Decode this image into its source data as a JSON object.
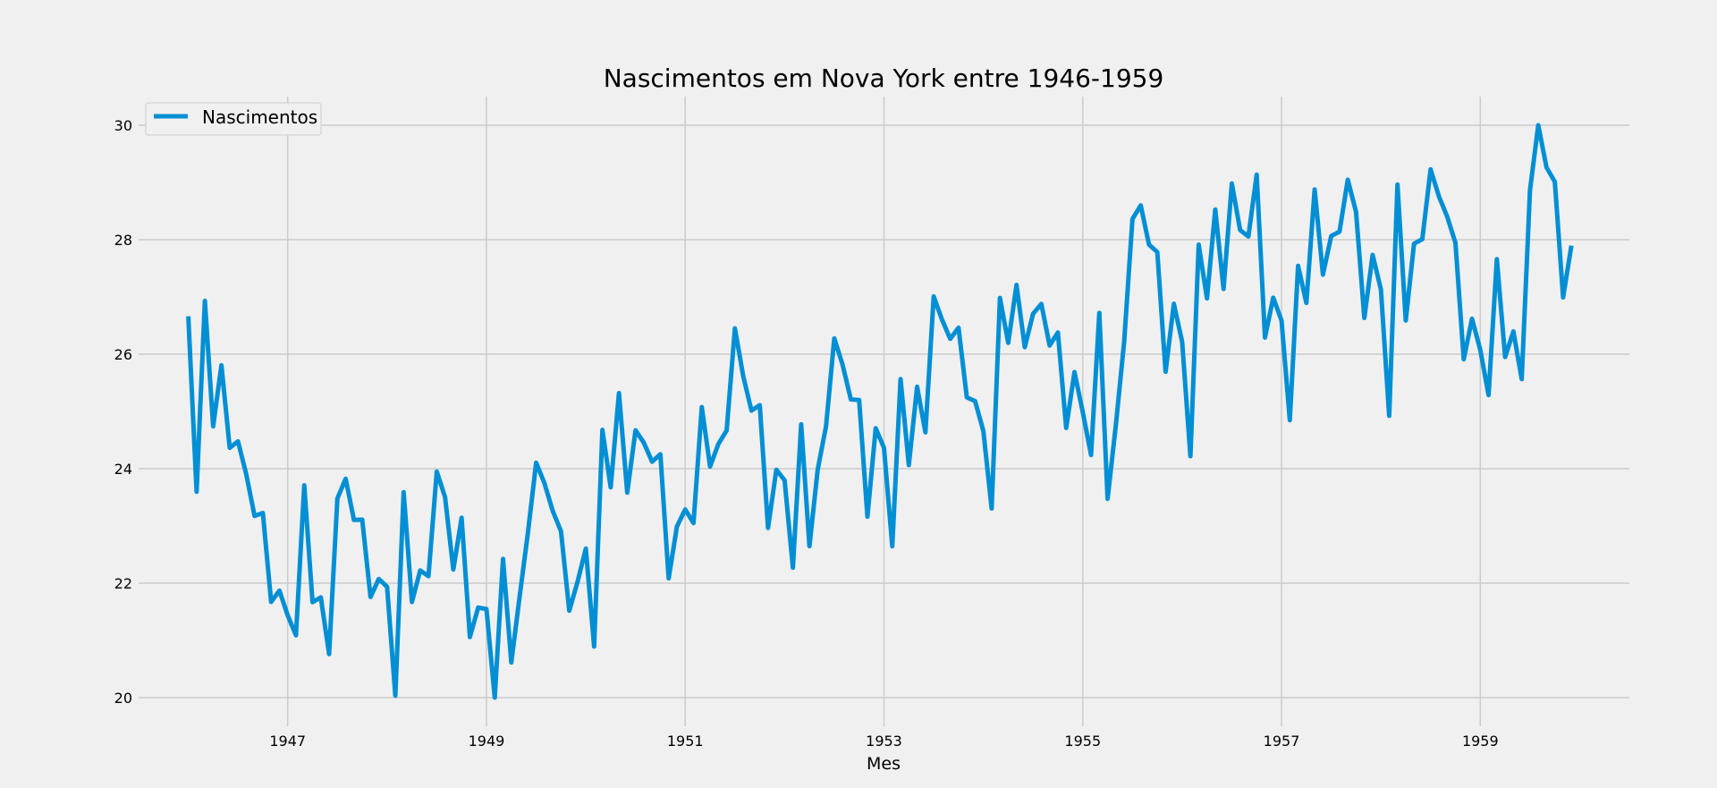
{
  "chart_data": {
    "type": "line",
    "title": "Nascimentos em Nova York entre 1946-1959",
    "xlabel": "Mes",
    "ylabel": "",
    "grid": true,
    "legend_position": "top-left",
    "colors": {
      "line": "#008fd5",
      "background": "#f0f0f0",
      "grid": "#cbcbcb"
    },
    "x_ticks": [
      "1947",
      "1949",
      "1951",
      "1953",
      "1955",
      "1957",
      "1959"
    ],
    "y_ticks": [
      20,
      22,
      24,
      26,
      28,
      30
    ],
    "ylim": [
      19.5,
      30.5
    ],
    "xlim": [
      "1945-07",
      "1960-07"
    ],
    "series": [
      {
        "name": "Nascimentos",
        "x_start": "1946-01",
        "x_frequency": "monthly",
        "values": [
          26.663,
          23.598,
          26.931,
          24.74,
          25.806,
          24.364,
          24.477,
          23.901,
          23.175,
          23.227,
          21.672,
          21.87,
          21.439,
          21.089,
          23.709,
          21.669,
          21.752,
          20.761,
          23.479,
          23.824,
          23.105,
          23.11,
          21.759,
          22.073,
          21.937,
          20.035,
          23.59,
          21.672,
          22.222,
          22.123,
          23.95,
          23.504,
          22.238,
          23.142,
          21.059,
          21.573,
          21.548,
          20.0,
          22.424,
          20.615,
          21.761,
          22.874,
          24.104,
          23.748,
          23.262,
          22.907,
          21.519,
          22.025,
          22.604,
          20.894,
          24.677,
          23.673,
          25.32,
          23.583,
          24.671,
          24.454,
          24.122,
          24.252,
          22.084,
          22.991,
          23.287,
          23.049,
          25.076,
          24.037,
          24.43,
          24.667,
          26.451,
          25.618,
          25.014,
          25.11,
          22.964,
          23.981,
          23.798,
          22.27,
          24.775,
          22.646,
          23.988,
          24.737,
          26.276,
          25.816,
          25.21,
          25.199,
          23.162,
          24.707,
          24.364,
          22.644,
          25.565,
          24.062,
          25.431,
          24.635,
          27.009,
          26.606,
          26.268,
          26.462,
          25.246,
          25.18,
          24.657,
          23.304,
          26.982,
          26.199,
          27.21,
          26.122,
          26.706,
          26.878,
          26.152,
          26.379,
          24.712,
          25.688,
          24.99,
          24.239,
          26.721,
          23.475,
          24.767,
          26.219,
          28.361,
          28.599,
          27.914,
          27.784,
          25.693,
          26.881,
          26.217,
          24.218,
          27.914,
          26.975,
          28.527,
          27.139,
          28.982,
          28.169,
          28.056,
          29.136,
          26.291,
          26.987,
          26.589,
          24.848,
          27.543,
          26.896,
          28.878,
          27.39,
          28.065,
          28.141,
          29.048,
          28.484,
          26.634,
          27.735,
          27.132,
          24.924,
          28.963,
          26.589,
          27.931,
          28.009,
          29.229,
          28.759,
          28.405,
          27.945,
          25.912,
          26.619,
          26.076,
          25.286,
          27.66,
          25.951,
          26.398,
          25.565,
          28.865,
          30.0,
          29.261,
          29.012,
          26.992,
          27.897
        ]
      }
    ]
  }
}
